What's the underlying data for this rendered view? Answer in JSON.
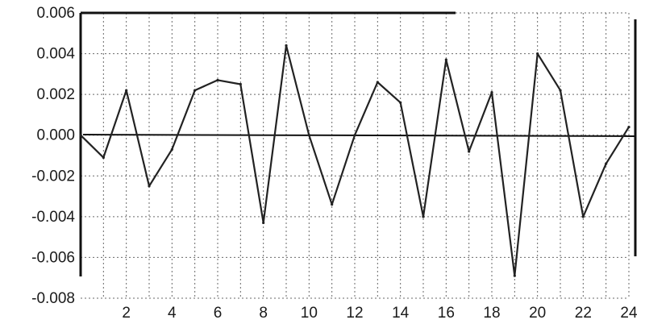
{
  "chart_data": {
    "type": "line",
    "title": "",
    "xlabel": "",
    "ylabel": "",
    "xlim": [
      0,
      24
    ],
    "ylim": [
      -0.008,
      0.006
    ],
    "xticks": [
      2,
      4,
      6,
      8,
      10,
      12,
      14,
      16,
      18,
      20,
      22,
      24
    ],
    "xtick_labels": [
      "2",
      "4",
      "6",
      "8",
      "10",
      "12",
      "14",
      "16",
      "18",
      "20",
      "22",
      "24"
    ],
    "yticks": [
      0.006,
      0.004,
      0.002,
      0.0,
      -0.002,
      -0.004,
      -0.006,
      -0.008
    ],
    "ytick_labels": [
      "0.006",
      "0.004",
      "0.002",
      "0.000",
      "-0.002",
      "-0.004",
      "-0.006",
      "-0.008"
    ],
    "grid": true,
    "series": [
      {
        "x": [
          0,
          1,
          2,
          3,
          4,
          5,
          6,
          7,
          8,
          9,
          10,
          11,
          12,
          13,
          14,
          15,
          16,
          17,
          18,
          19,
          20,
          21,
          22,
          23,
          24
        ],
        "values": [
          0.0,
          -0.0011,
          0.0022,
          -0.0025,
          -0.0007,
          0.0022,
          0.0027,
          0.0025,
          -0.0043,
          0.0044,
          0.0,
          -0.0034,
          0.0,
          0.0026,
          0.0016,
          -0.004,
          0.0037,
          -0.0008,
          0.0021,
          -0.0069,
          0.004,
          0.0022,
          -0.004,
          -0.0014,
          0.0004
        ]
      }
    ]
  }
}
